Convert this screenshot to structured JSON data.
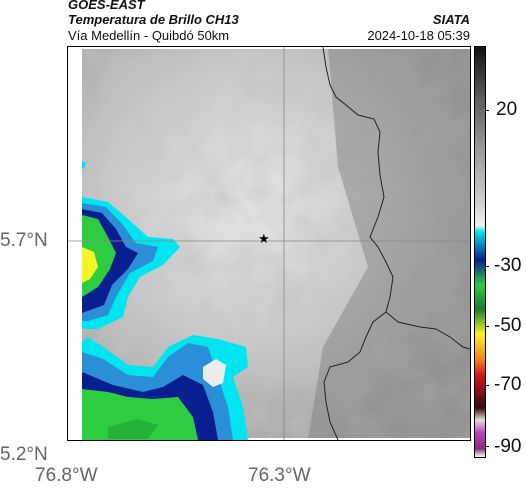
{
  "header": {
    "satellite": "GOES-EAST",
    "product": "Temperatura de Brillo CH13",
    "region": "Vía Medellín - Quibdó 50km",
    "agency": "SIATA",
    "timestamp": "2024-10-18 05:39"
  },
  "map": {
    "y_ticks": [
      "5.7°N",
      "5.2°N"
    ],
    "x_ticks": [
      "76.8°W",
      "76.3°W"
    ],
    "marker_icon": "star-icon"
  },
  "colorbar": {
    "ticks": [
      "20",
      "-30",
      "-50",
      "-70",
      "-90"
    ],
    "colors": {
      "top": "#1a1a1a",
      "grey_mid": "#9a9a9a",
      "light": "#f0f0f0",
      "cyan": "#00e5f0",
      "blue": "#0a1f8f",
      "green": "#2ecc40",
      "yellow": "#f5f523",
      "orange": "#f08a18",
      "red": "#d4141e",
      "dark": "#3a0a0a",
      "magenta": "#c040c0"
    }
  }
}
